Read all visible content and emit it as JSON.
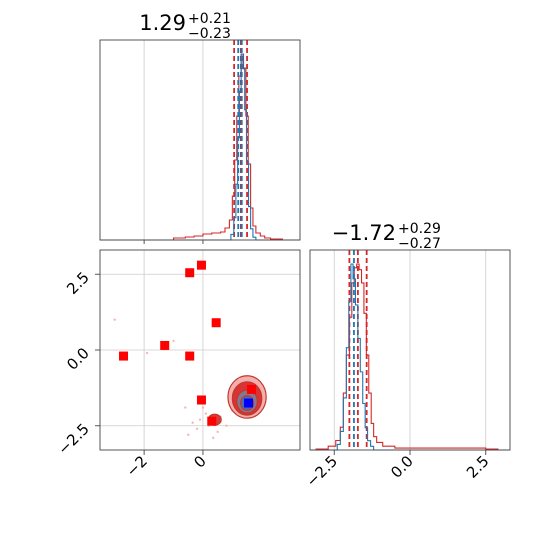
{
  "chart_data": [
    {
      "type": "histogram",
      "panel": "top-left",
      "title": {
        "median": "1.29",
        "plus": "+0.21",
        "minus": "−0.23"
      },
      "xlim": [
        -3.5,
        3.3
      ],
      "grid": true,
      "colors": {
        "red": "#d62728",
        "blue": "#1f77b4"
      },
      "series": [
        {
          "name": "",
          "color": "#d62728",
          "bins": [
            [
              -1.0,
              0.01
            ],
            [
              -0.6,
              0.015
            ],
            [
              -0.3,
              0.02
            ],
            [
              0.0,
              0.03
            ],
            [
              0.3,
              0.035
            ],
            [
              0.6,
              0.04
            ],
            [
              0.75,
              0.06
            ],
            [
              0.9,
              0.1
            ],
            [
              1.0,
              0.22
            ],
            [
              1.08,
              0.4
            ],
            [
              1.15,
              0.62
            ],
            [
              1.22,
              0.82
            ],
            [
              1.3,
              0.93
            ],
            [
              1.38,
              0.86
            ],
            [
              1.46,
              0.62
            ],
            [
              1.54,
              0.38
            ],
            [
              1.62,
              0.16
            ],
            [
              1.7,
              0.07
            ],
            [
              1.8,
              0.035
            ],
            [
              1.95,
              0.02
            ],
            [
              2.1,
              0.01
            ],
            [
              2.3,
              0.005
            ]
          ],
          "quantiles": [
            1.06,
            1.29,
            1.5
          ]
        },
        {
          "name": "",
          "color": "#1f77b4",
          "bins": [
            [
              0.95,
              0.03
            ],
            [
              1.05,
              0.12
            ],
            [
              1.12,
              0.3
            ],
            [
              1.18,
              0.55
            ],
            [
              1.24,
              0.8
            ],
            [
              1.3,
              1.0
            ],
            [
              1.36,
              0.92
            ],
            [
              1.42,
              0.7
            ],
            [
              1.48,
              0.42
            ],
            [
              1.55,
              0.18
            ],
            [
              1.62,
              0.06
            ],
            [
              1.7,
              0.015
            ]
          ],
          "quantiles": [
            1.2,
            1.32
          ]
        }
      ]
    },
    {
      "type": "scatter",
      "panel": "bottom-left",
      "xlim": [
        -3.5,
        3.3
      ],
      "ylim": [
        -3.3,
        3.3
      ],
      "xticks": [
        -2,
        0
      ],
      "xtick_labels": [
        "−2",
        "0"
      ],
      "yticks": [
        2.5,
        0.0,
        -2.5
      ],
      "ytick_labels": [
        "2.5",
        "0.0",
        "−2.5"
      ],
      "grid": true,
      "red_points": [
        [
          -0.05,
          2.8
        ],
        [
          -0.45,
          2.55
        ],
        [
          0.45,
          0.9
        ],
        [
          -1.3,
          0.15
        ],
        [
          -2.7,
          -0.2
        ],
        [
          -0.45,
          -0.2
        ],
        [
          -0.05,
          -1.65
        ],
        [
          1.65,
          -1.3
        ],
        [
          0.3,
          -2.35
        ]
      ],
      "blue_points": [
        [
          1.55,
          -1.75
        ]
      ],
      "contours": [
        {
          "cx": 1.5,
          "cy": -1.55,
          "rx": 0.65,
          "ry": 0.7,
          "color": "#f4a5a5"
        },
        {
          "cx": 1.5,
          "cy": -1.6,
          "rx": 0.5,
          "ry": 0.55,
          "color": "#d62728"
        },
        {
          "cx": 1.5,
          "cy": -1.7,
          "rx": 0.35,
          "ry": 0.38,
          "color": "#7a7f99"
        },
        {
          "cx": 1.5,
          "cy": -1.75,
          "rx": 0.22,
          "ry": 0.24,
          "color": "#4169b8"
        },
        {
          "cx": 0.4,
          "cy": -2.3,
          "rx": 0.22,
          "ry": 0.18,
          "color": "#d62728"
        }
      ]
    },
    {
      "type": "histogram",
      "panel": "bottom-right",
      "title": {
        "median": "−1.72",
        "plus": "+0.29",
        "minus": "−0.27"
      },
      "xlim": [
        -3.3,
        3.3
      ],
      "xticks": [
        -2.5,
        0.0,
        2.5
      ],
      "xtick_labels": [
        "−2.5",
        "0.0",
        "2.5"
      ],
      "grid": true,
      "series": [
        {
          "name": "",
          "color": "#d62728",
          "bins": [
            [
              -3.1,
              0.005
            ],
            [
              -2.7,
              0.02
            ],
            [
              -2.45,
              0.05
            ],
            [
              -2.3,
              0.12
            ],
            [
              -2.2,
              0.3
            ],
            [
              -2.1,
              0.5
            ],
            [
              -2.0,
              0.7
            ],
            [
              -1.92,
              0.88
            ],
            [
              -1.84,
              0.96
            ],
            [
              -1.76,
              0.98
            ],
            [
              -1.68,
              0.95
            ],
            [
              -1.6,
              0.88
            ],
            [
              -1.52,
              0.72
            ],
            [
              -1.44,
              0.5
            ],
            [
              -1.36,
              0.3
            ],
            [
              -1.28,
              0.14
            ],
            [
              -1.2,
              0.07
            ],
            [
              -1.1,
              0.04
            ],
            [
              -0.9,
              0.02
            ],
            [
              -0.5,
              0.01
            ],
            [
              0.5,
              0.01
            ],
            [
              1.5,
              0.01
            ],
            [
              2.5,
              0.005
            ]
          ],
          "quantiles": [
            -2.0,
            -1.72,
            -1.43
          ]
        },
        {
          "name": "",
          "color": "#1f77b4",
          "bins": [
            [
              -2.4,
              0.03
            ],
            [
              -2.3,
              0.1
            ],
            [
              -2.2,
              0.28
            ],
            [
              -2.1,
              0.55
            ],
            [
              -2.02,
              0.8
            ],
            [
              -1.95,
              1.0
            ],
            [
              -1.88,
              0.92
            ],
            [
              -1.8,
              0.78
            ],
            [
              -1.72,
              0.6
            ],
            [
              -1.64,
              0.42
            ],
            [
              -1.56,
              0.25
            ],
            [
              -1.48,
              0.12
            ],
            [
              -1.4,
              0.05
            ],
            [
              -1.3,
              0.02
            ]
          ],
          "quantiles": [
            -1.85
          ]
        }
      ]
    }
  ]
}
